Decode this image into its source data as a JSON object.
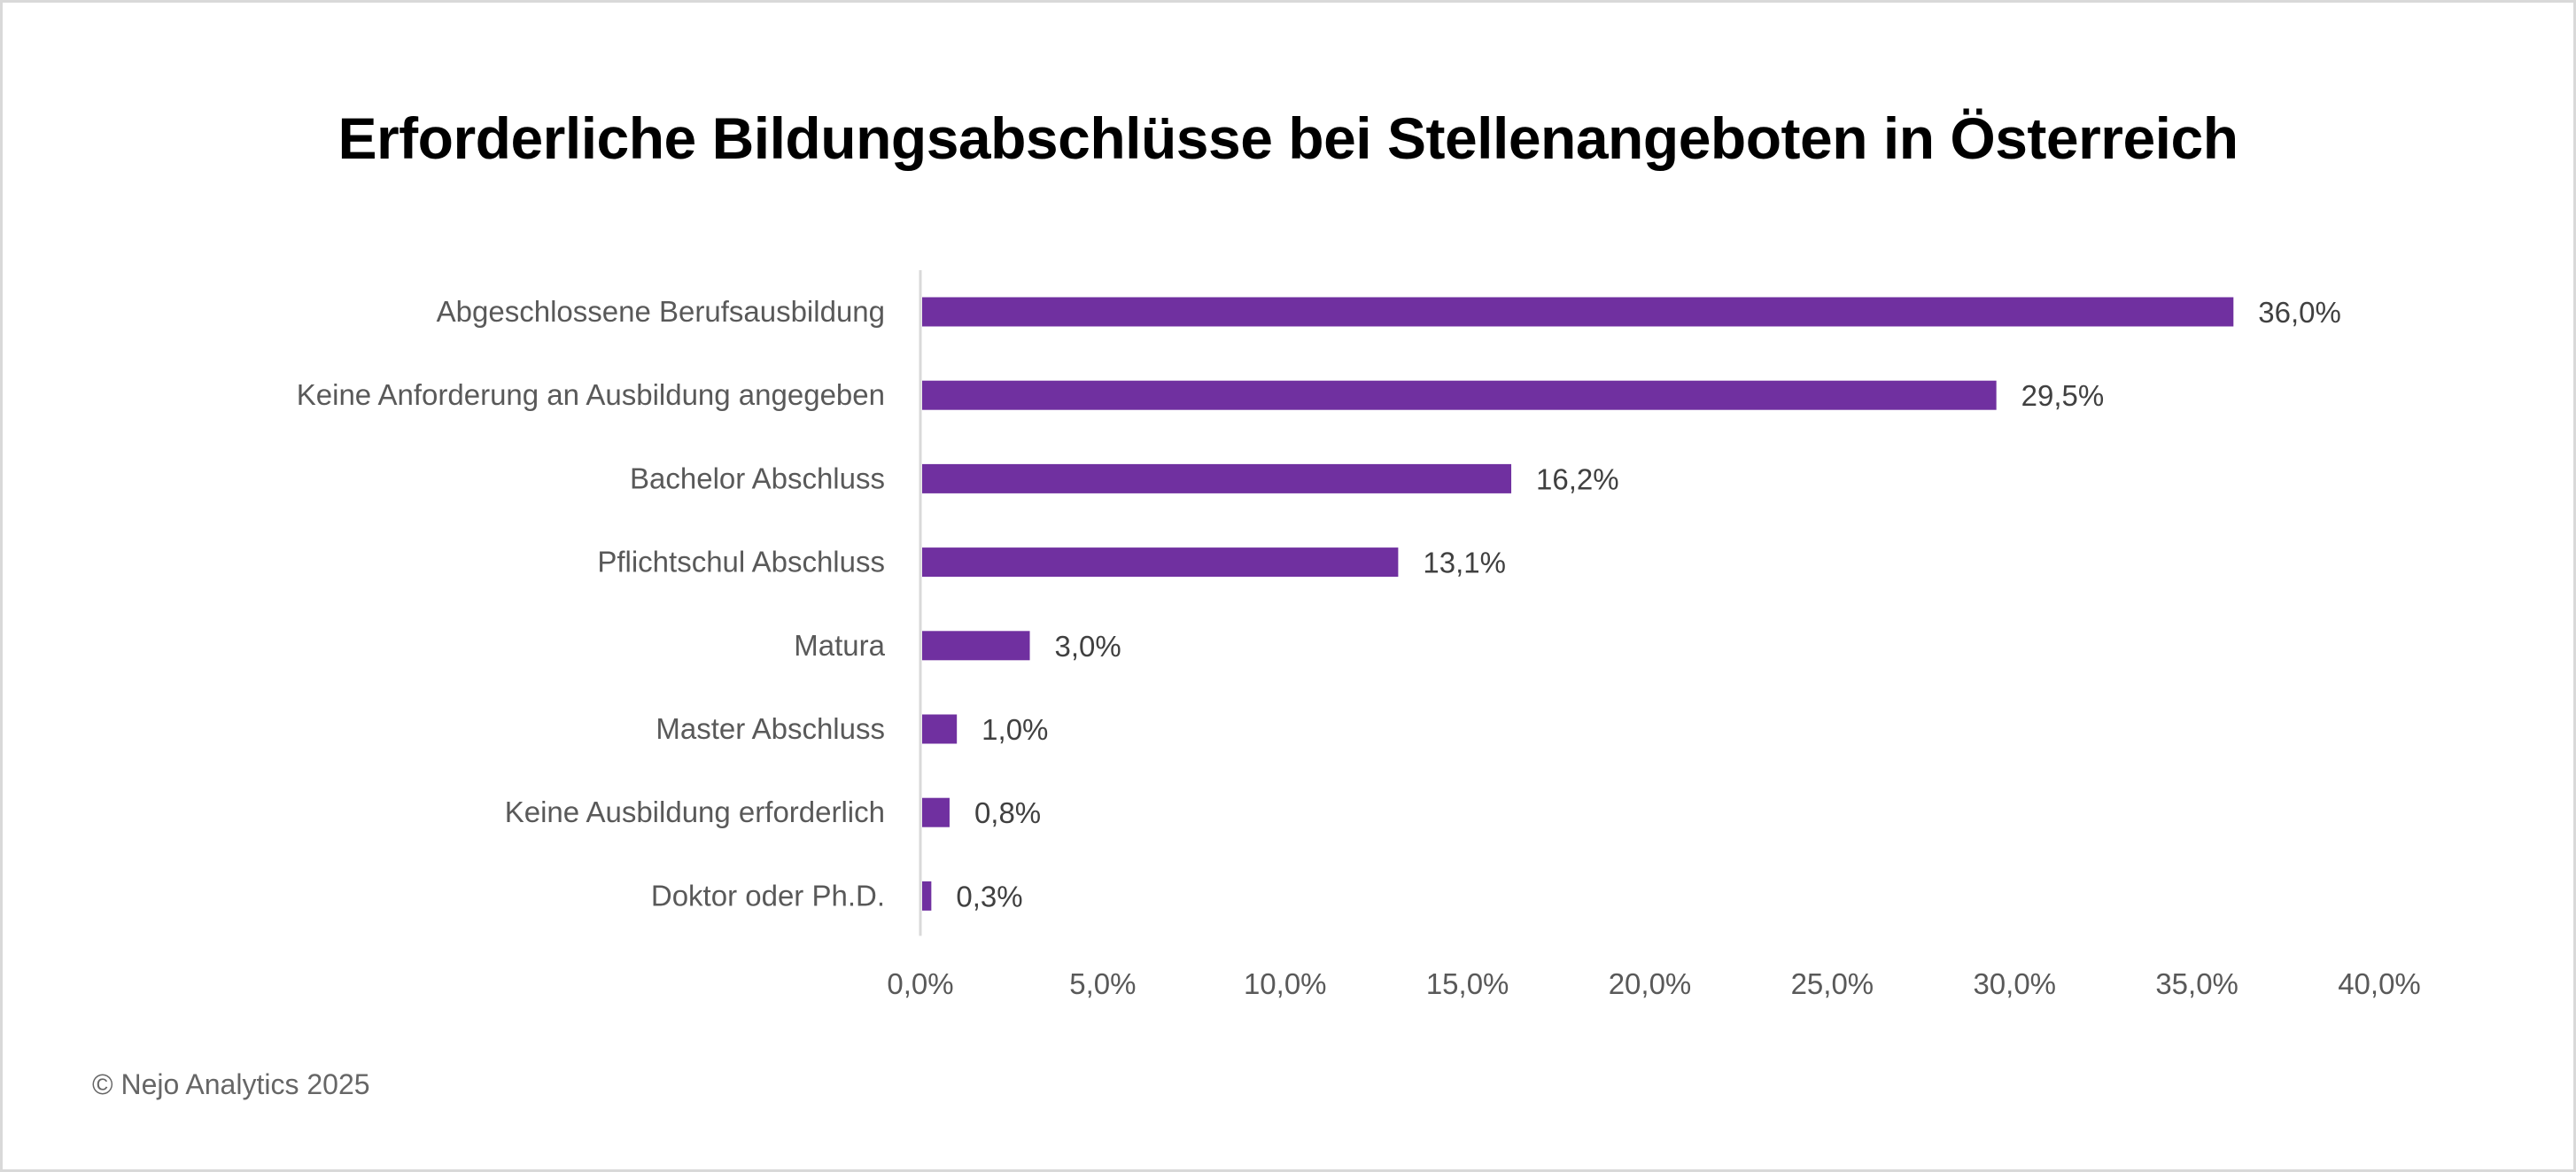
{
  "chart_data": {
    "type": "bar",
    "orientation": "horizontal",
    "title": "Erforderliche Bildungsabschlüsse bei Stellenangeboten in Österreich",
    "categories": [
      "Abgeschlossene Berufsausbildung",
      "Keine Anforderung an Ausbildung angegeben",
      "Bachelor Abschluss",
      "Pflichtschul Abschluss",
      "Matura",
      "Master Abschluss",
      "Keine Ausbildung erforderlich",
      "Doktor oder Ph.D."
    ],
    "values": [
      36.0,
      29.5,
      16.2,
      13.1,
      3.0,
      1.0,
      0.8,
      0.3
    ],
    "data_labels": [
      "36,0%",
      "29,5%",
      "16,2%",
      "13,1%",
      "3,0%",
      "1,0%",
      "0,8%",
      "0,3%"
    ],
    "xlim": [
      0,
      40
    ],
    "x_ticks": [
      "0,0%",
      "5,0%",
      "10,0%",
      "15,0%",
      "20,0%",
      "25,0%",
      "30,0%",
      "35,0%",
      "40,0%"
    ],
    "xlabel": "",
    "ylabel": "",
    "grid": false,
    "legend": "none",
    "bar_color": "#7030A0"
  },
  "footer": {
    "copyright": "© Nejo Analytics 2025"
  }
}
